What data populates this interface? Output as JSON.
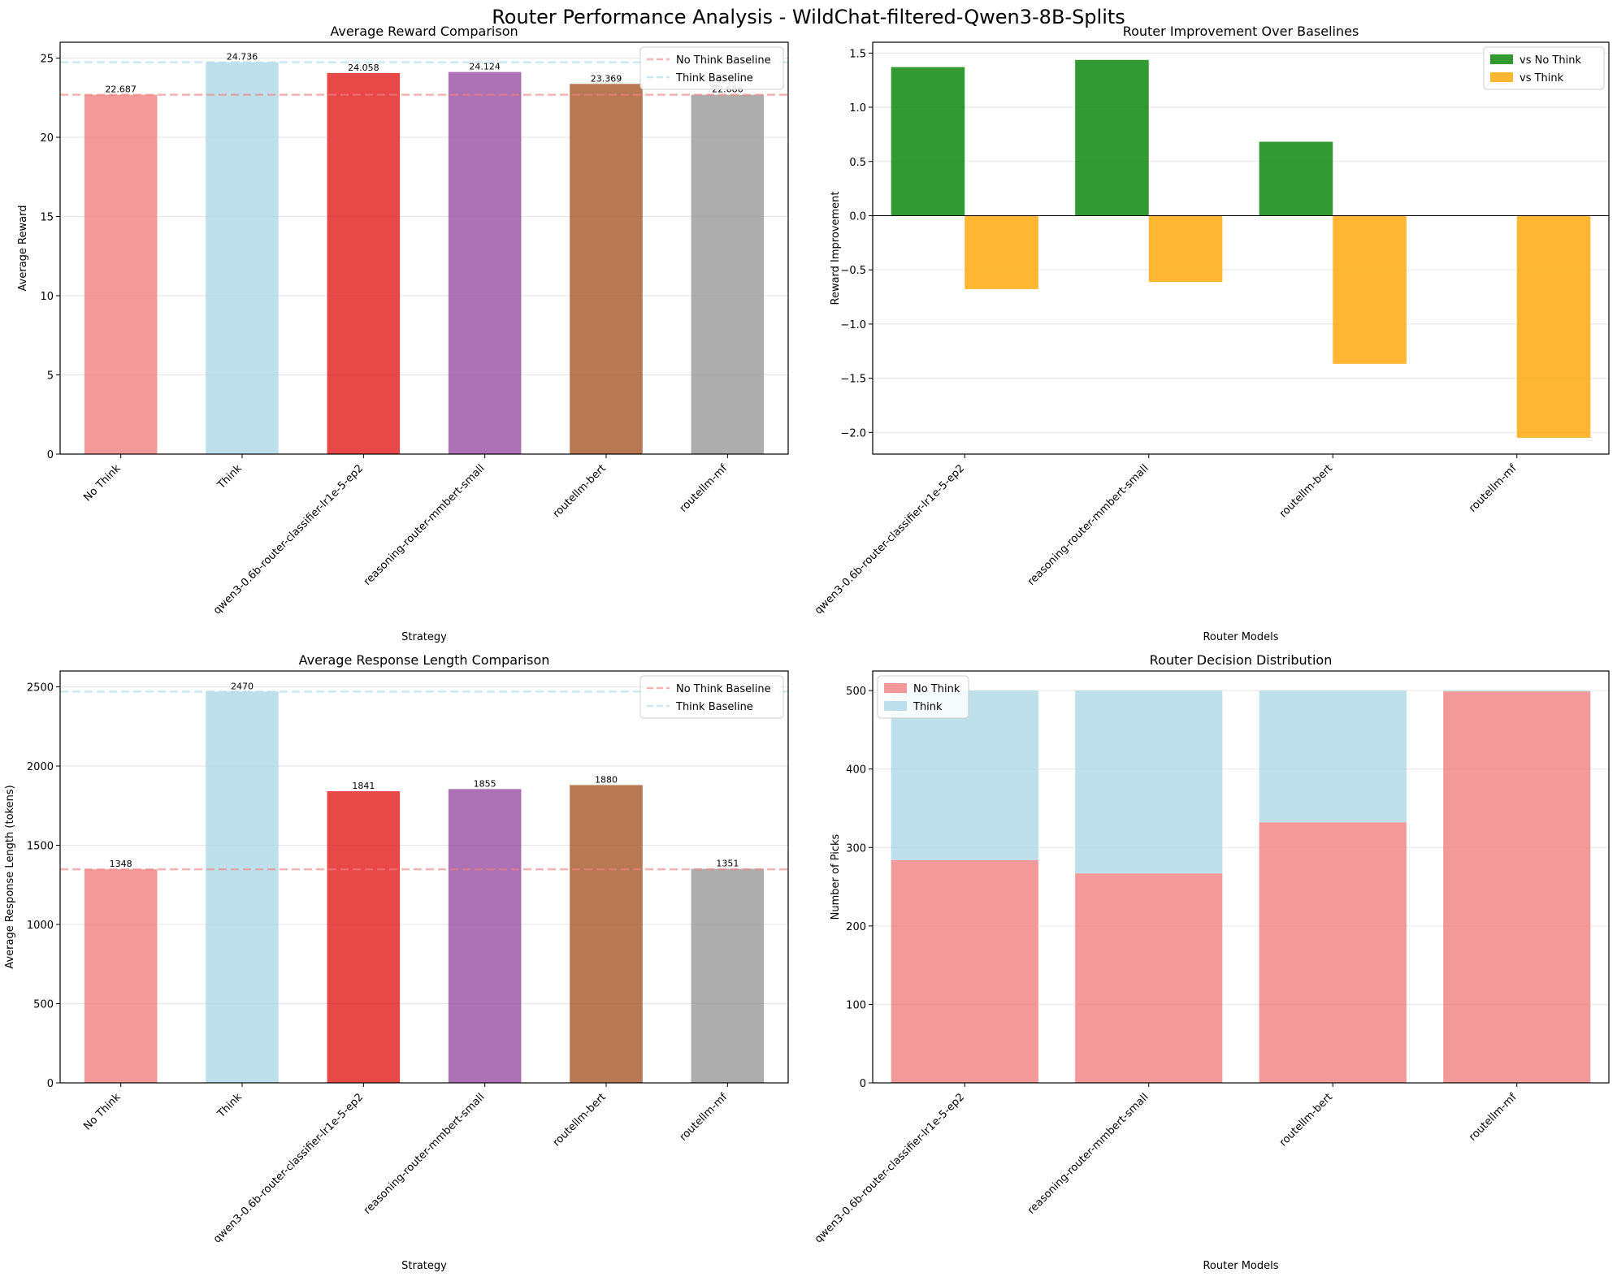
{
  "figure_title": "Router Performance Analysis - WildChat-filtered-Qwen3-8B-Splits",
  "colors": {
    "no_think": "#F08080",
    "think": "#ADD8E6",
    "router_1": "#E41A1C",
    "router_2": "#984EA3",
    "router_3": "#A65628",
    "router_4": "#999999",
    "vs_no_think": "#008000",
    "vs_think": "#FFA500",
    "grid": "#e6e6e6"
  },
  "chart_data": [
    {
      "id": "reward",
      "type": "bar",
      "title": "Average Reward Comparison",
      "xlabel": "Strategy",
      "ylabel": "Average Reward",
      "categories": [
        "No Think",
        "Think",
        "qwen3-0.6b-router-classifier-lr1e-5-ep2",
        "reasoning-router-mmbert-small",
        "routellm-bert",
        "routellm-mf"
      ],
      "values": [
        22.687,
        24.736,
        24.058,
        24.124,
        23.369,
        22.686
      ],
      "value_labels": [
        "22.687",
        "24.736",
        "24.058",
        "24.124",
        "23.369",
        "22.686"
      ],
      "bar_colors": [
        "#F08080",
        "#ADD8E6",
        "#E41A1C",
        "#984EA3",
        "#A65628",
        "#999999"
      ],
      "ylim": [
        0,
        26
      ],
      "yticks": [
        0,
        5,
        10,
        15,
        20,
        25
      ],
      "ytick_labels": [
        "0",
        "5",
        "10",
        "15",
        "20",
        "25"
      ],
      "baselines": [
        {
          "name": "No Think Baseline",
          "value": 22.687,
          "color": "#F08080"
        },
        {
          "name": "Think Baseline",
          "value": 24.736,
          "color": "#ADD8E6"
        }
      ],
      "legend": [
        "No Think Baseline",
        "Think Baseline"
      ],
      "legend_loc": "upper right",
      "grid": "y"
    },
    {
      "id": "improvement",
      "type": "bar",
      "title": "Router Improvement Over Baselines",
      "xlabel": "Router Models",
      "ylabel": "Reward Improvement",
      "categories": [
        "qwen3-0.6b-router-classifier-lr1e-5-ep2",
        "reasoning-router-mmbert-small",
        "routellm-bert",
        "routellm-mf"
      ],
      "series": [
        {
          "name": "vs No Think",
          "values": [
            1.371,
            1.437,
            0.682,
            -0.001
          ],
          "color": "#008000"
        },
        {
          "name": "vs Think",
          "values": [
            -0.678,
            -0.612,
            -1.367,
            -2.05
          ],
          "color": "#FFA500"
        }
      ],
      "ylim": [
        -2.2,
        1.6
      ],
      "yticks": [
        -2.0,
        -1.5,
        -1.0,
        -0.5,
        0.0,
        0.5,
        1.0,
        1.5
      ],
      "ytick_labels": [
        "−2.0",
        "−1.5",
        "−1.0",
        "−0.5",
        "0.0",
        "0.5",
        "1.0",
        "1.5"
      ],
      "legend": [
        "vs No Think",
        "vs Think"
      ],
      "legend_loc": "upper right",
      "grid": "y"
    },
    {
      "id": "length",
      "type": "bar",
      "title": "Average Response Length Comparison",
      "xlabel": "Strategy",
      "ylabel": "Average Response Length (tokens)",
      "categories": [
        "No Think",
        "Think",
        "qwen3-0.6b-router-classifier-lr1e-5-ep2",
        "reasoning-router-mmbert-small",
        "routellm-bert",
        "routellm-mf"
      ],
      "values": [
        1348,
        2470,
        1841,
        1855,
        1880,
        1351
      ],
      "value_labels": [
        "1348",
        "2470",
        "1841",
        "1855",
        "1880",
        "1351"
      ],
      "bar_colors": [
        "#F08080",
        "#ADD8E6",
        "#E41A1C",
        "#984EA3",
        "#A65628",
        "#999999"
      ],
      "ylim": [
        0,
        2600
      ],
      "yticks": [
        0,
        500,
        1000,
        1500,
        2000,
        2500
      ],
      "ytick_labels": [
        "0",
        "500",
        "1000",
        "1500",
        "2000",
        "2500"
      ],
      "baselines": [
        {
          "name": "No Think Baseline",
          "value": 1348,
          "color": "#F08080"
        },
        {
          "name": "Think Baseline",
          "value": 2470,
          "color": "#ADD8E6"
        }
      ],
      "legend": [
        "No Think Baseline",
        "Think Baseline"
      ],
      "legend_loc": "upper right",
      "grid": "y"
    },
    {
      "id": "decisions",
      "type": "bar",
      "stacked": true,
      "title": "Router Decision Distribution",
      "xlabel": "Router Models",
      "ylabel": "Number of Picks",
      "categories": [
        "qwen3-0.6b-router-classifier-lr1e-5-ep2",
        "reasoning-router-mmbert-small",
        "routellm-bert",
        "routellm-mf"
      ],
      "series": [
        {
          "name": "No Think",
          "values": [
            284,
            267,
            332,
            499
          ],
          "color": "#F08080"
        },
        {
          "name": "Think",
          "values": [
            216,
            233,
            168,
            1
          ],
          "color": "#ADD8E6"
        }
      ],
      "ylim": [
        0,
        525
      ],
      "yticks": [
        0,
        100,
        200,
        300,
        400,
        500
      ],
      "ytick_labels": [
        "0",
        "100",
        "200",
        "300",
        "400",
        "500"
      ],
      "legend": [
        "No Think",
        "Think"
      ],
      "legend_loc": "upper left",
      "grid": "y"
    }
  ]
}
